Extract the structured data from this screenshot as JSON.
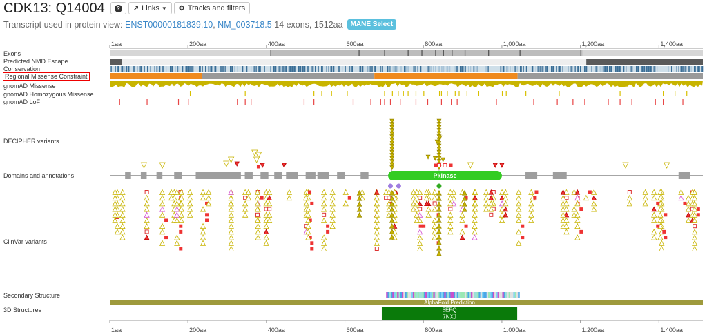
{
  "header": {
    "title": "CDK13: Q14004",
    "help_icon": "question-circle-icon",
    "links_label": "Links",
    "links_icon": "external-link-icon",
    "tracks_label": "Tracks and filters",
    "tracks_icon": "gear-icon"
  },
  "transcript": {
    "prefix": "Transcript used in protein view:",
    "ensembl_id": "ENST00000181839.10",
    "separator": ",",
    "refseq_id": "NM_003718.5",
    "details": "14 exons, 1512aa",
    "badge": "MANE Select"
  },
  "axis": {
    "ticks": [
      "1aa",
      "200aa",
      "400aa",
      "600aa",
      "800aa",
      "1,000aa",
      "1,200aa",
      "1,400aa"
    ],
    "tick_values": [
      1,
      200,
      400,
      600,
      800,
      1000,
      1200,
      1400
    ],
    "length": 1512
  },
  "tracks": {
    "exons": "Exons",
    "nmd": "Predicted NMD Escape",
    "conservation": "Conservation",
    "rmc": "Regional Missense Constraint",
    "gnomad_missense": "gnomAD Missense",
    "gnomad_hom": "gnomAD Homozygous Missense",
    "gnomad_lof": "gnomAD LoF",
    "decipher": "DECIPHER variants",
    "domains": "Domains and annotations",
    "clinvar": "ClinVar variants",
    "secondary": "Secondary Structure",
    "structures3d": "3D Structures"
  },
  "domain": {
    "label": "Pkinase",
    "start": 710,
    "end": 1000,
    "color": "#33cc22"
  },
  "structures": {
    "alphafold": "AlphaFold Prediction",
    "pdb": [
      {
        "label": "5EFQ",
        "start": 694,
        "end": 1039
      },
      {
        "label": "7NXJ",
        "start": 694,
        "end": 1039
      }
    ]
  },
  "colors": {
    "accent_link": "#3a87c8",
    "badge": "#5bc0de",
    "exon_gray": "#d9d9d9",
    "nmd": "#5a5a5a",
    "rmc_orange": "#ef8a1e",
    "rmc_gray": "#9a9a9a",
    "missense_yellow": "#c8b400",
    "lof_red": "#e33",
    "decipher_tri": "#c8b400",
    "alphafold": "#9e9a3c",
    "pdb": "#0a7a0a"
  },
  "rmc_regions": [
    {
      "start": 1,
      "end": 235,
      "level": "orange"
    },
    {
      "start": 235,
      "end": 675,
      "level": "gray"
    },
    {
      "start": 675,
      "end": 1040,
      "level": "orange"
    },
    {
      "start": 1040,
      "end": 1512,
      "level": "gray"
    }
  ],
  "nmd_regions": [
    {
      "start": 1,
      "end": 32
    },
    {
      "start": 1215,
      "end": 1512
    }
  ]
}
